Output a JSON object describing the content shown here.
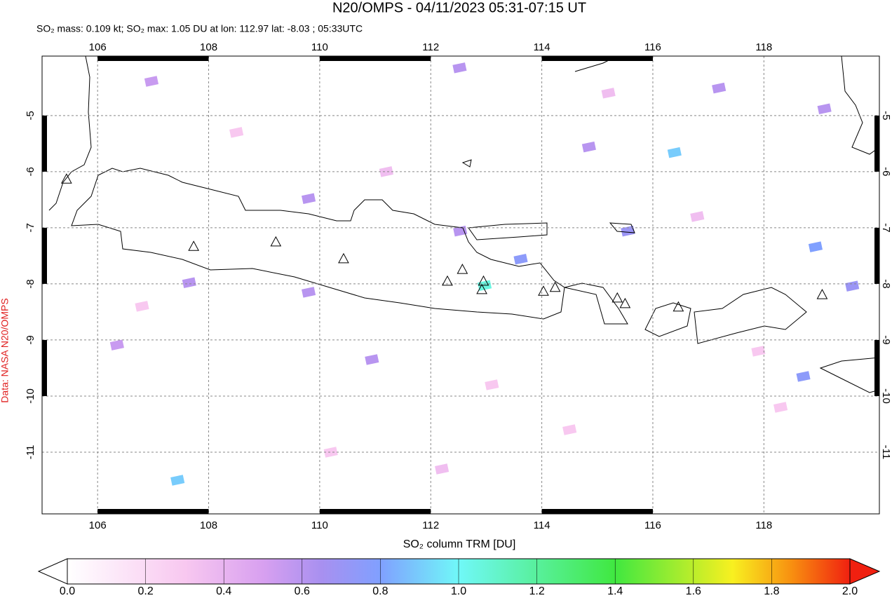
{
  "chart_data": {
    "type": "map",
    "title": "N20/OMPS - 04/11/2023 05:31-07:15 UT",
    "subtitle": "SO₂ mass: 0.109 kt; SO₂ max: 1.05 DU at lon: 112.97 lat: -8.03 ; 05:33UTC",
    "side_label": "Data: NASA N20/OMPS",
    "xlim": [
      105.0,
      120.08
    ],
    "ylim": [
      -12.1,
      -3.94
    ],
    "xticks": [
      106,
      108,
      110,
      112,
      114,
      116,
      118
    ],
    "yticks": [
      -5,
      -6,
      -7,
      -8,
      -9,
      -10,
      -11
    ],
    "grid": true,
    "volcanoes": {
      "lon": [
        107.73,
        109.21,
        110.43,
        112.57,
        112.3,
        112.95,
        112.92,
        114.03,
        114.24,
        115.36,
        115.5,
        116.46,
        119.05,
        105.44
      ],
      "lat": [
        -7.33,
        -7.25,
        -7.55,
        -7.74,
        -7.95,
        -7.95,
        -8.1,
        -8.13,
        -8.06,
        -8.25,
        -8.35,
        -8.41,
        -8.19,
        -6.13
      ]
    },
    "pixels": {
      "lon": [
        112.97,
        107.44,
        107.65,
        109.8,
        110.94,
        106.35,
        106.97,
        112.52,
        117.19,
        114.85,
        116.39,
        118.93,
        118.71,
        113.62,
        115.55,
        119.59,
        109.8,
        112.53,
        119.09,
        108.5,
        111.2,
        113.1,
        114.5,
        116.8,
        117.9,
        110.2,
        115.2,
        106.8,
        118.3,
        112.2
      ],
      "lat": [
        -8.03,
        -11.5,
        -7.98,
        -6.48,
        -9.35,
        -9.09,
        -4.39,
        -4.15,
        -4.51,
        -5.56,
        -5.66,
        -7.34,
        -9.65,
        -7.56,
        -7.06,
        -8.04,
        -8.15,
        -7.06,
        -4.88,
        -5.3,
        -6.0,
        -9.8,
        -10.6,
        -6.8,
        -9.2,
        -11.0,
        -4.6,
        -8.4,
        -10.2,
        -11.3
      ],
      "values": [
        1.05,
        0.9,
        0.6,
        0.6,
        0.6,
        0.55,
        0.55,
        0.6,
        0.6,
        0.6,
        0.9,
        0.8,
        0.75,
        0.75,
        0.7,
        0.7,
        0.6,
        0.6,
        0.6,
        0.3,
        0.35,
        0.3,
        0.3,
        0.35,
        0.3,
        0.3,
        0.35,
        0.3,
        0.3,
        0.35
      ]
    },
    "colorbar": {
      "label": "SO₂ column TRM [DU]",
      "lim": [
        0,
        2
      ],
      "ticks": [
        {
          "value": 0,
          "label": "0.0"
        },
        {
          "value": 0.2,
          "label": "0.2"
        },
        {
          "value": 0.4,
          "label": "0.4"
        },
        {
          "value": 0.6,
          "label": "0.6"
        },
        {
          "value": 0.8,
          "label": "0.8"
        },
        {
          "value": 1.0,
          "label": "1.0"
        },
        {
          "value": 1.2,
          "label": "1.2"
        },
        {
          "value": 1.4,
          "label": "1.4"
        },
        {
          "value": 1.6,
          "label": "1.6"
        },
        {
          "value": 1.8,
          "label": "1.8"
        },
        {
          "value": 2.0,
          "label": "2.0"
        }
      ],
      "stops": [
        {
          "value": 0,
          "color": "#ffffff"
        },
        {
          "value": 0.3,
          "color": "#f8c8f0"
        },
        {
          "value": 0.5,
          "color": "#d8a0f0"
        },
        {
          "value": 0.65,
          "color": "#a890f0"
        },
        {
          "value": 0.8,
          "color": "#80a0ff"
        },
        {
          "value": 1.0,
          "color": "#70f8f8"
        },
        {
          "value": 1.4,
          "color": "#40e840"
        },
        {
          "value": 1.7,
          "color": "#f8f020"
        },
        {
          "value": 1.85,
          "color": "#f89010"
        },
        {
          "value": 2.0,
          "color": "#f02010"
        }
      ]
    }
  }
}
